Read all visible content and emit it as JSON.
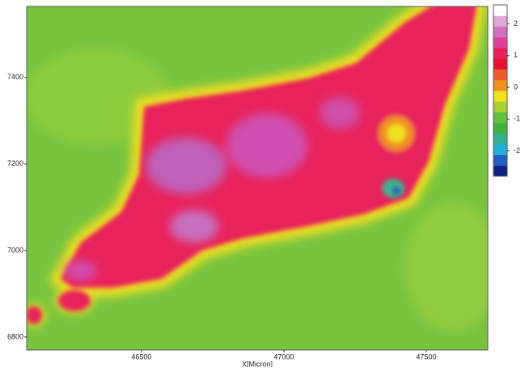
{
  "chart_data": {
    "type": "heatmap",
    "xlabel": "X[Micron]",
    "xlim": [
      46097,
      47716
    ],
    "xticks": [
      46500,
      47000,
      47500
    ],
    "ylim": [
      6770,
      7564
    ],
    "yticks": [
      6800,
      7000,
      7200,
      7400
    ],
    "colorbar": {
      "zlim": [
        -2.8,
        2.6
      ],
      "ticks": [
        2,
        1,
        0,
        -1,
        -2
      ],
      "colors": [
        "#102080",
        "#2060c0",
        "#20b0d8",
        "#30b090",
        "#40b040",
        "#60c040",
        "#a8d030",
        "#f0e020",
        "#f09020",
        "#ee5a30",
        "#e81030",
        "#e8205a",
        "#e0409a",
        "#d070c0",
        "#e0a8d8",
        "#ffffff"
      ]
    }
  }
}
